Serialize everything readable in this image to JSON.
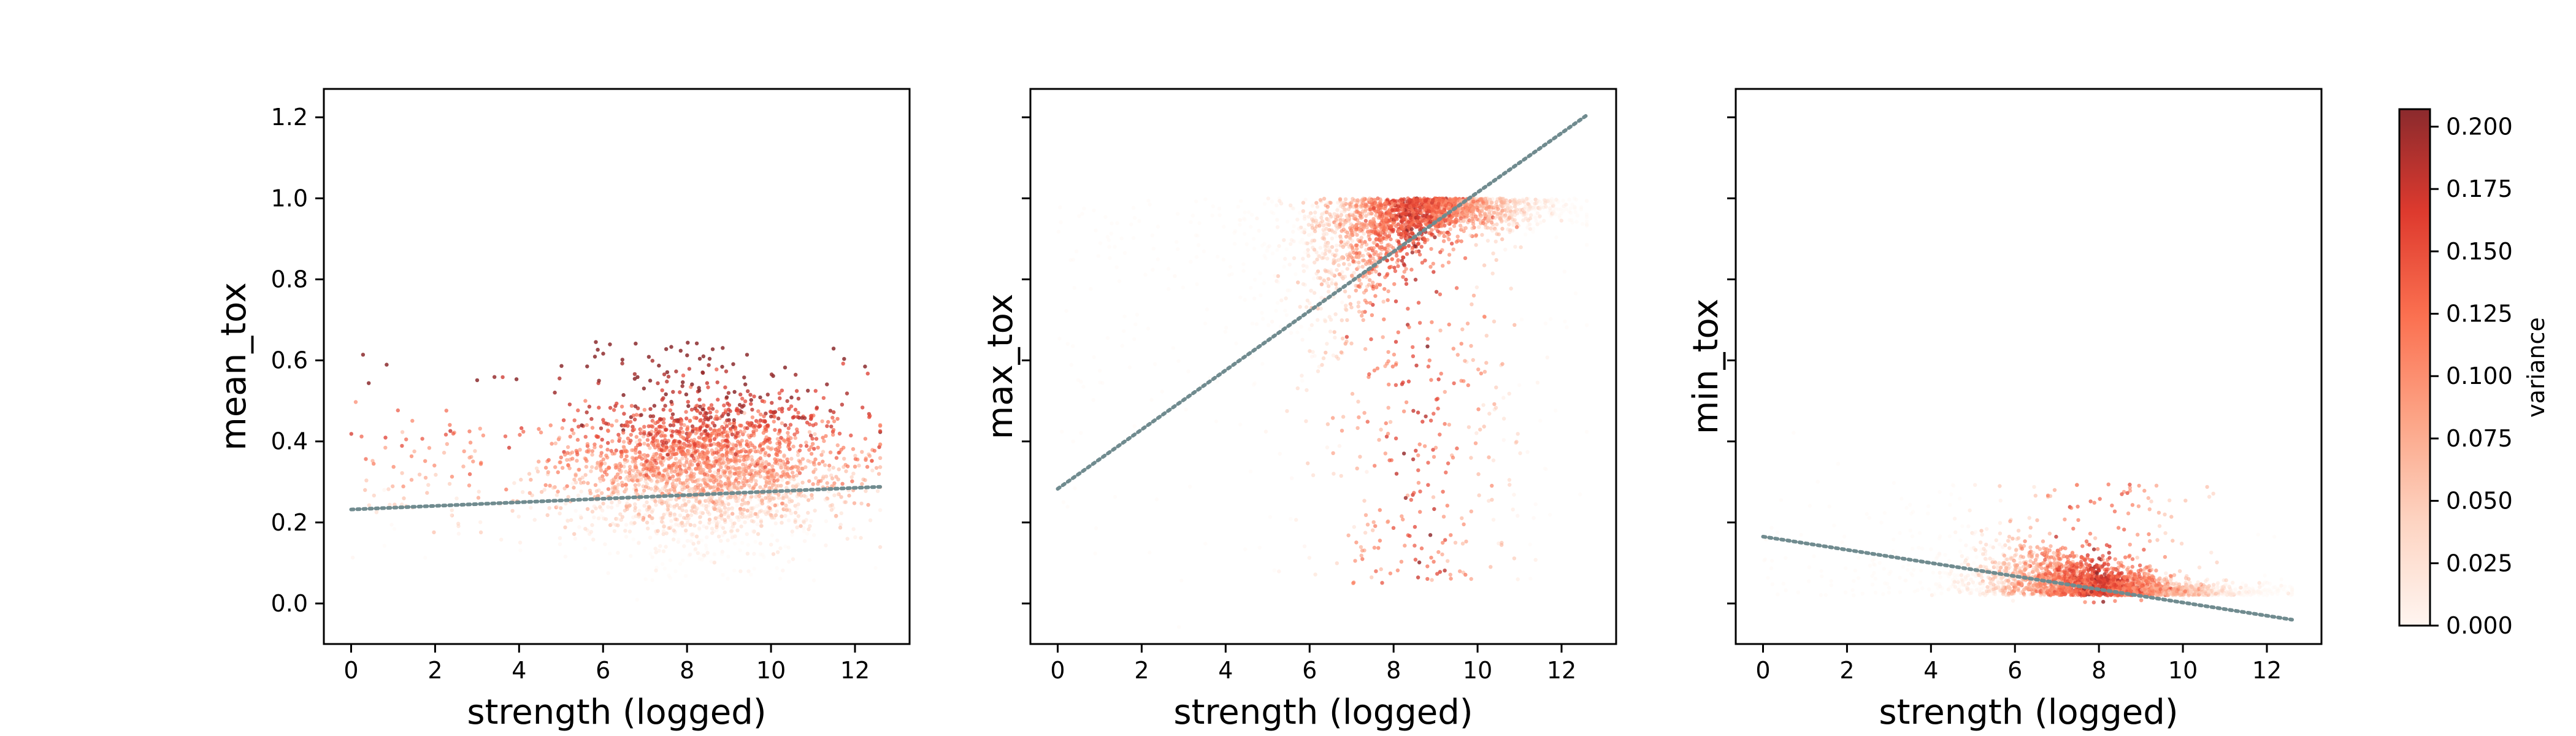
{
  "chart_data": [
    {
      "type": "scatter",
      "xlabel": "strength (logged)",
      "ylabel": "mean_tox",
      "xlim": [
        -0.65,
        13.3
      ],
      "ylim": [
        -0.1,
        1.27
      ],
      "xticks": [
        0,
        2,
        4,
        6,
        8,
        10,
        12
      ],
      "yticks": [
        0.0,
        0.2,
        0.4,
        0.6,
        0.8,
        1.0,
        1.2
      ],
      "ytick_labels": [
        "0.0",
        "0.2",
        "0.4",
        "0.6",
        "0.8",
        "1.0",
        "1.2"
      ],
      "trend_line": {
        "x": [
          0,
          12.6
        ],
        "y": [
          0.232,
          0.288
        ],
        "color": "#708b8f",
        "style": "dotted"
      },
      "cloud": {
        "center_x": 8.5,
        "center_y": 0.33,
        "spread_x": 1.6,
        "spread_y": 0.09
      }
    },
    {
      "type": "scatter",
      "xlabel": "strength (logged)",
      "ylabel": "max_tox",
      "xlim": [
        -0.65,
        13.3
      ],
      "ylim": [
        -0.1,
        1.27
      ],
      "xticks": [
        0,
        2,
        4,
        6,
        8,
        10,
        12
      ],
      "yticks": [
        0.0,
        0.2,
        0.4,
        0.6,
        0.8,
        1.0,
        1.2
      ],
      "ytick_labels": [],
      "trend_line": {
        "x": [
          0,
          12.6
        ],
        "y": [
          0.283,
          1.205
        ],
        "color": "#708b8f",
        "style": "dotted"
      },
      "cloud": {
        "center_x": 8.5,
        "center_y": 0.95,
        "spread_x": 1.6,
        "spread_y": 0.05
      }
    },
    {
      "type": "scatter",
      "xlabel": "strength (logged)",
      "ylabel": "min_tox",
      "xlim": [
        -0.65,
        13.3
      ],
      "ylim": [
        -0.1,
        1.27
      ],
      "xticks": [
        0,
        2,
        4,
        6,
        8,
        10,
        12
      ],
      "yticks": [
        0.0,
        0.2,
        0.4,
        0.6,
        0.8,
        1.0,
        1.2
      ],
      "ytick_labels": [],
      "trend_line": {
        "x": [
          0,
          12.6
        ],
        "y": [
          0.165,
          -0.04
        ],
        "color": "#708b8f",
        "style": "dotted"
      },
      "cloud": {
        "center_x": 8.0,
        "center_y": 0.04,
        "spread_x": 1.7,
        "spread_y": 0.03
      }
    }
  ],
  "colorbar": {
    "label": "variance",
    "min": 0.0,
    "max": 0.207,
    "ticks": [
      0.0,
      0.025,
      0.05,
      0.075,
      0.1,
      0.125,
      0.15,
      0.175,
      0.2
    ],
    "tick_labels": [
      "0.000",
      "0.025",
      "0.050",
      "0.075",
      "0.100",
      "0.125",
      "0.150",
      "0.175",
      "0.200"
    ],
    "colors": [
      "#fff5f0",
      "#fdd4c2",
      "#fca486",
      "#fb7050",
      "#de3a2e",
      "#8b2a2d"
    ]
  }
}
